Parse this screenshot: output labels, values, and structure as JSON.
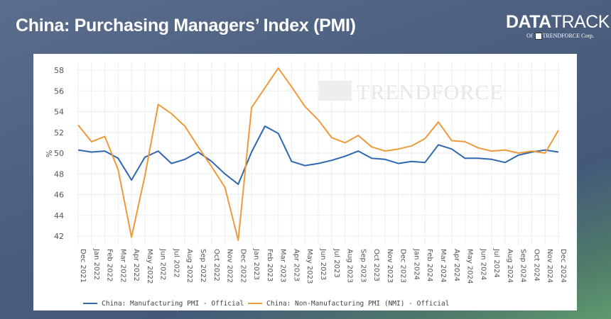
{
  "header": {
    "title": "China: Purchasing Managers’ Index (PMI)"
  },
  "logo": {
    "main_bold": "DATA",
    "main_light": "TRACK",
    "sub_prefix": "Of",
    "sub_brand": "TRENDFORCE",
    "sub_suffix": "Corp."
  },
  "watermark": "TRENDFORCE",
  "chart_data": {
    "type": "line",
    "title": "",
    "xlabel": "",
    "ylabel": "%",
    "ylim": [
      41,
      59
    ],
    "yticks": [
      42,
      44,
      46,
      48,
      50,
      52,
      54,
      56,
      58
    ],
    "grid": true,
    "legend_position": "bottom",
    "categories": [
      "Dec 2021",
      "Jan 2022",
      "Feb 2022",
      "Mar 2022",
      "Apr 2022",
      "May 2022",
      "Jun 2022",
      "Jul 2022",
      "Aug 2022",
      "Sep 2022",
      "Oct 2022",
      "Nov 2022",
      "Dec 2022",
      "Jan 2023",
      "Feb 2023",
      "Mar 2023",
      "Apr 2023",
      "May 2023",
      "Jun 2023",
      "Jul 2023",
      "Aug 2023",
      "Sep 2023",
      "Oct 2023",
      "Nov 2023",
      "Dec 2023",
      "Jan 2024",
      "Feb 2024",
      "Mar 2024",
      "Apr 2024",
      "May 2024",
      "Jun 2024",
      "Jul 2024",
      "Aug 2024",
      "Sep 2024",
      "Oct 2024",
      "Nov 2024",
      "Dec 2024"
    ],
    "series": [
      {
        "name": "China: Manufacturing PMI - Official",
        "color": "#2f67b1",
        "values": [
          50.3,
          50.1,
          50.2,
          49.5,
          47.4,
          49.6,
          50.2,
          49.0,
          49.4,
          50.1,
          49.2,
          48.0,
          47.0,
          50.1,
          52.6,
          51.9,
          49.2,
          48.8,
          49.0,
          49.3,
          49.7,
          50.2,
          49.5,
          49.4,
          49.0,
          49.2,
          49.1,
          50.8,
          50.4,
          49.5,
          49.5,
          49.4,
          49.1,
          49.8,
          50.1,
          50.3,
          50.1
        ]
      },
      {
        "name": "China: Non-Manufacturing PMI (NMI) - Official",
        "color": "#ee9a3a",
        "values": [
          52.7,
          51.1,
          51.6,
          48.4,
          41.9,
          47.8,
          54.7,
          53.8,
          52.6,
          50.6,
          48.7,
          46.7,
          41.6,
          54.4,
          56.3,
          58.2,
          56.4,
          54.5,
          53.2,
          51.5,
          51.0,
          51.7,
          50.6,
          50.2,
          50.4,
          50.7,
          51.4,
          53.0,
          51.2,
          51.1,
          50.5,
          50.2,
          50.3,
          50.0,
          50.2,
          50.0,
          52.2
        ]
      }
    ]
  }
}
